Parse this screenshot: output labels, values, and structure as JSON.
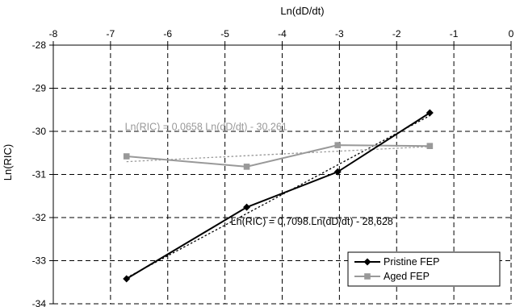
{
  "chart_data": {
    "type": "line",
    "xlabel": "Ln(dD/dt)",
    "ylabel": "Ln(RIC)",
    "xlim": [
      -8,
      0
    ],
    "ylim": [
      -34,
      -28
    ],
    "x_ticks": [
      -8,
      -7,
      -6,
      -5,
      -4,
      -3,
      -2,
      -1,
      0
    ],
    "y_ticks": [
      -28,
      -29,
      -30,
      -31,
      -32,
      -33,
      -34
    ],
    "x_axis_position": "top",
    "grid": true,
    "grid_style": "dashed",
    "legend_position": "bottom-right",
    "series": [
      {
        "name": "Pristine FEP",
        "color": "#000000",
        "marker": "diamond",
        "x": [
          -6.72,
          -4.62,
          -3.03,
          -1.42
        ],
        "y": [
          -33.42,
          -31.76,
          -30.94,
          -29.57
        ]
      },
      {
        "name": "Aged FEP",
        "color": "#999999",
        "marker": "square",
        "x": [
          -6.72,
          -4.62,
          -3.03,
          -1.42
        ],
        "y": [
          -30.58,
          -30.82,
          -30.32,
          -30.34
        ]
      }
    ],
    "trendlines": [
      {
        "series": "Pristine FEP",
        "slope": 0.7098,
        "intercept": -28.628,
        "equation": "Ln(RIC) = 0,7098.Ln(dD/dt) - 28,628",
        "color": "#000000"
      },
      {
        "series": "Aged FEP",
        "slope": 0.0658,
        "intercept": -30.261,
        "equation": "Ln(RIC) = 0,0658 Ln(dD/dt) - 30,261",
        "color": "#999999"
      }
    ]
  }
}
